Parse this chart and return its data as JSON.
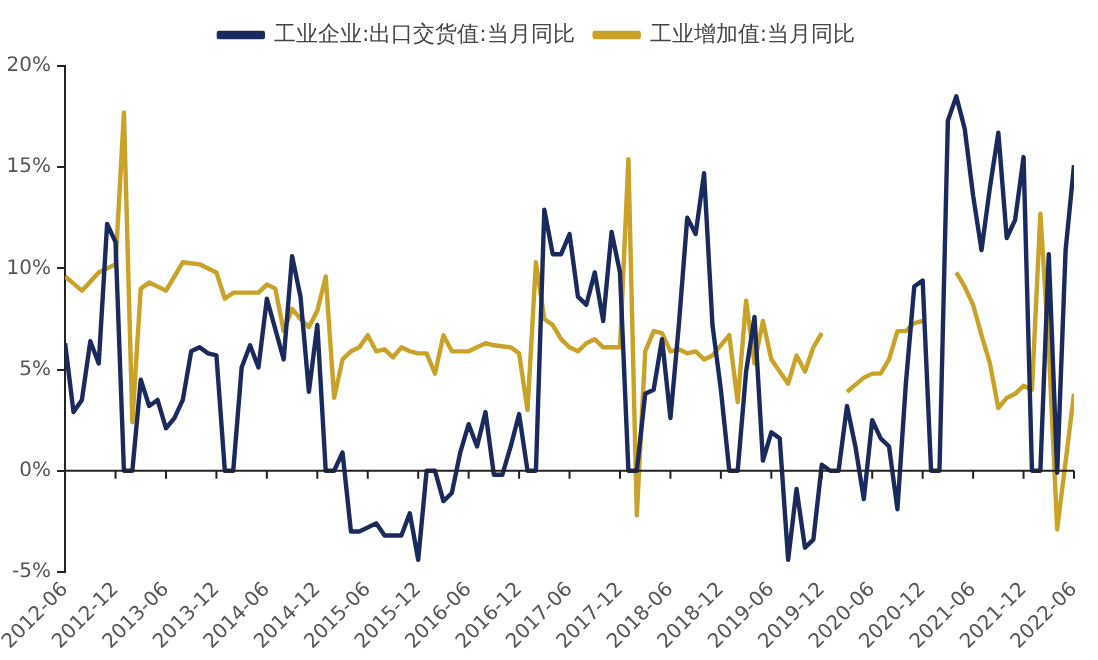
{
  "chart_data": {
    "type": "line",
    "xlim": [
      "2012-06",
      "2022-06"
    ],
    "xticks": [
      "2012-06",
      "2012-12",
      "2013-06",
      "2013-12",
      "2014-06",
      "2014-12",
      "2015-06",
      "2015-12",
      "2016-06",
      "2016-12",
      "2017-06",
      "2017-12",
      "2018-06",
      "2018-12",
      "2019-06",
      "2019-12",
      "2020-06",
      "2020-12",
      "2021-06",
      "2021-12",
      "2022-06"
    ],
    "ylim": [
      -5,
      20
    ],
    "yticks": [
      {
        "value": -5,
        "label": "-5%"
      },
      {
        "value": 0,
        "label": "0%"
      },
      {
        "value": 5,
        "label": "5%"
      },
      {
        "value": 10,
        "label": "10%"
      },
      {
        "value": 15,
        "label": "15%"
      },
      {
        "value": 20,
        "label": "20%"
      }
    ],
    "grid": false,
    "ref_lines": [
      {
        "axis": "y",
        "value": 0,
        "color": "#222222",
        "line_style": "solid"
      }
    ],
    "legend": "top",
    "marker": "none",
    "line_style": "solid",
    "series": [
      {
        "name": "工业企业:出口交货值:当月同比",
        "color": "#1b2a5c",
        "x": [
          "2012-06",
          "2012-07",
          "2012-08",
          "2012-09",
          "2012-10",
          "2012-11",
          "2012-12",
          "2013-01",
          "2013-02",
          "2013-03",
          "2013-04",
          "2013-05",
          "2013-06",
          "2013-07",
          "2013-08",
          "2013-09",
          "2013-10",
          "2013-11",
          "2013-12",
          "2014-01",
          "2014-02",
          "2014-03",
          "2014-04",
          "2014-05",
          "2014-06",
          "2014-08",
          "2014-09",
          "2014-10",
          "2014-11",
          "2014-12",
          "2015-01",
          "2015-02",
          "2015-03",
          "2015-04",
          "2015-05",
          "2015-07",
          "2015-08",
          "2015-10",
          "2015-11",
          "2015-12",
          "2016-01",
          "2016-02",
          "2016-03",
          "2016-04",
          "2016-05",
          "2016-06",
          "2016-07",
          "2016-08",
          "2016-09",
          "2016-10",
          "2016-11",
          "2016-12",
          "2017-01",
          "2017-02",
          "2017-03",
          "2017-04",
          "2017-05",
          "2017-06",
          "2017-07",
          "2017-08",
          "2017-09",
          "2017-10",
          "2017-11",
          "2017-12",
          "2018-01",
          "2018-02",
          "2018-03",
          "2018-04",
          "2018-05",
          "2018-06",
          "2018-07",
          "2018-08",
          "2018-09",
          "2018-10",
          "2018-11",
          "2018-12",
          "2019-01",
          "2019-02",
          "2019-03",
          "2019-04",
          "2019-05",
          "2019-06",
          "2019-07",
          "2019-08",
          "2019-09",
          "2019-10",
          "2019-11",
          "2019-12",
          "2020-01",
          "2020-02",
          "2020-03",
          "2020-04",
          "2020-05",
          "2020-06",
          "2020-07",
          "2020-08",
          "2020-09",
          "2020-10",
          "2020-11",
          "2020-12",
          "2021-01",
          "2021-02",
          "2021-03",
          "2021-04",
          "2021-05",
          "2021-06",
          "2021-07",
          "2021-08",
          "2021-09",
          "2021-10",
          "2021-11",
          "2021-12",
          "2022-01",
          "2022-02",
          "2022-03",
          "2022-04",
          "2022-05",
          "2022-06"
        ],
        "values": [
          6.3,
          2.9,
          3.5,
          6.4,
          5.3,
          12.2,
          11.3,
          0,
          0,
          4.5,
          3.2,
          3.5,
          2.1,
          2.6,
          3.5,
          5.9,
          6.1,
          5.8,
          5.7,
          0,
          0,
          5.1,
          6.2,
          5.1,
          8.5,
          5.5,
          10.6,
          8.6,
          3.9,
          7.2,
          0,
          0,
          0.9,
          -3.0,
          -3.0,
          -2.6,
          -3.2,
          -3.2,
          -2.1,
          -4.4,
          0,
          0,
          -1.5,
          -1.1,
          0.9,
          2.3,
          1.2,
          2.9,
          -0.2,
          -0.2,
          1.2,
          2.8,
          0,
          0,
          12.9,
          10.7,
          10.7,
          11.7,
          8.6,
          8.2,
          9.8,
          7.4,
          11.8,
          9.8,
          0,
          0,
          3.8,
          4.0,
          6.5,
          2.6,
          7.2,
          12.5,
          11.7,
          14.7,
          7.2,
          4.0,
          0,
          0,
          4.9,
          7.6,
          0.5,
          1.9,
          1.6,
          -4.4,
          -0.9,
          -3.8,
          -3.4,
          0.3,
          0,
          0,
          3.2,
          1.2,
          -1.4,
          2.5,
          1.6,
          1.2,
          -1.9,
          4.3,
          9.1,
          9.4,
          0,
          0,
          17.3,
          18.5,
          16.9,
          13.6,
          10.9,
          14.0,
          16.7,
          11.5,
          12.4,
          15.5,
          0,
          0,
          10.7,
          -0.1,
          10.9,
          15.1
        ]
      },
      {
        "name": "工业增加值:当月同比",
        "color": "#c9a227",
        "x": [
          "2012-06",
          "2012-08",
          "2012-10",
          "2012-12",
          "2013-01",
          "2013-02",
          "2013-03",
          "2013-04",
          "2013-06",
          "2013-08",
          "2013-10",
          "2013-12",
          "2014-01",
          "2014-02",
          "2014-05",
          "2014-06",
          "2014-07",
          "2014-08",
          "2014-09",
          "2014-10",
          "2014-11",
          "2014-12",
          "2015-01",
          "2015-02",
          "2015-03",
          "2015-04",
          "2015-05",
          "2015-06",
          "2015-07",
          "2015-08",
          "2015-09",
          "2015-10",
          "2015-11",
          "2015-12",
          "2016-01",
          "2016-02",
          "2016-03",
          "2016-04",
          "2016-06",
          "2016-07",
          "2016-08",
          "2016-09",
          "2016-11",
          "2016-12",
          "2017-01",
          "2017-02",
          "2017-03",
          "2017-04",
          "2017-05",
          "2017-06",
          "2017-07",
          "2017-08",
          "2017-09",
          "2017-10",
          "2017-12",
          "2018-01",
          "2018-02",
          "2018-03",
          "2018-04",
          "2018-05",
          "2018-06",
          "2018-07",
          "2018-08",
          "2018-09",
          "2018-10",
          "2018-11",
          "2019-01",
          "2019-02",
          "2019-03",
          "2019-04",
          "2019-05",
          "2019-06",
          "2019-07",
          "2019-08",
          "2019-09",
          "2019-10",
          "2019-11",
          "2019-12",
          "2020-01",
          "2020-02",
          "2020-03",
          "2020-05",
          "2020-06",
          "2020-07",
          "2020-08",
          "2020-09",
          "2020-10",
          "2020-11",
          "2020-12",
          "2021-01",
          "2021-02",
          "2021-03",
          "2021-04",
          "2021-05",
          "2021-06",
          "2021-07",
          "2021-08",
          "2021-09",
          "2021-10",
          "2021-11",
          "2021-12",
          "2022-01",
          "2022-02",
          "2022-03",
          "2022-04",
          "2022-06"
        ],
        "values": [
          9.6,
          8.9,
          9.8,
          10.2,
          17.7,
          2.4,
          9.0,
          9.3,
          8.9,
          10.3,
          10.2,
          9.8,
          8.5,
          8.8,
          8.8,
          9.2,
          9.0,
          6.9,
          8.0,
          7.5,
          7.1,
          7.9,
          9.6,
          3.6,
          5.5,
          5.9,
          6.1,
          6.7,
          5.9,
          6.0,
          5.6,
          6.1,
          5.9,
          5.8,
          5.8,
          4.8,
          6.7,
          5.9,
          5.9,
          6.1,
          6.3,
          6.2,
          6.1,
          5.8,
          3.0,
          10.3,
          7.5,
          7.2,
          6.5,
          6.1,
          5.9,
          6.3,
          6.5,
          6.1,
          6.1,
          15.4,
          -2.2,
          5.9,
          6.9,
          6.8,
          5.9,
          6.0,
          5.8,
          5.9,
          5.5,
          5.7,
          6.7,
          3.4,
          8.4,
          5.3,
          7.4,
          5.5,
          4.9,
          4.3,
          5.7,
          4.9,
          6.1,
          6.8,
          null,
          null,
          3.9,
          4.6,
          4.8,
          4.8,
          5.5,
          6.9,
          6.9,
          7.3,
          7.4,
          null,
          null,
          null,
          9.8,
          9.1,
          8.2,
          6.7,
          5.3,
          3.1,
          3.6,
          3.8,
          4.2,
          4.0,
          12.7,
          6.1,
          -2.9,
          3.8
        ]
      }
    ]
  }
}
